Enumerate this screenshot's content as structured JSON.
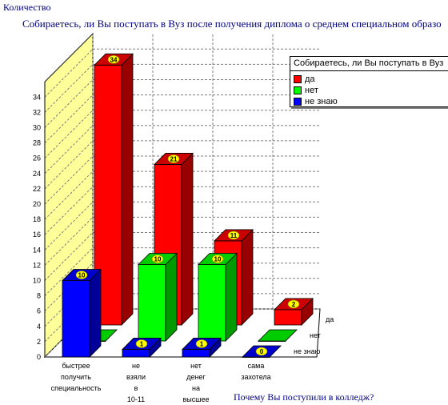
{
  "chart_data": {
    "type": "bar",
    "title": "Собираетесь, ли Вы поступать в Вуз после получения диплома о среднем специальном образо",
    "ylabel": "Количество",
    "xlabel": "Почему Вы поступили в колледж?",
    "ylim": [
      0,
      36
    ],
    "yticks": [
      0,
      2,
      4,
      6,
      8,
      10,
      12,
      14,
      16,
      18,
      20,
      22,
      24,
      26,
      28,
      30,
      32,
      34
    ],
    "grid": true,
    "categories": [
      [
        "быстрее",
        "получить",
        "специальность"
      ],
      [
        "не",
        "взяли",
        "в",
        "10-11"
      ],
      [
        "нет",
        "денег",
        "на",
        "высшее"
      ],
      [
        "сама",
        "захотела"
      ]
    ],
    "series": [
      {
        "name": "да",
        "color": "#ff0000",
        "values": [
          34,
          21,
          11,
          2
        ]
      },
      {
        "name": "нет",
        "color": "#00ff00",
        "values": [
          0,
          10,
          10,
          0
        ]
      },
      {
        "name": "не знаю",
        "color": "#0000ff",
        "values": [
          10,
          1,
          1,
          0
        ]
      }
    ],
    "legend": {
      "title": "Собираетесь, ли Вы поступать в Вуз",
      "position": "top-right"
    }
  }
}
